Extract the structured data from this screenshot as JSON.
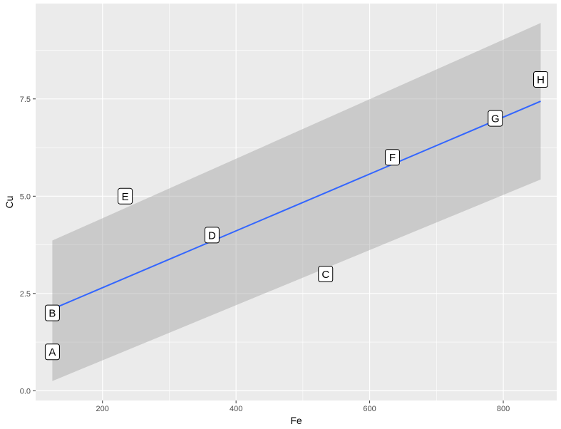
{
  "chart_data": {
    "type": "scatter",
    "title": "",
    "xlabel": "Fe",
    "ylabel": "Cu",
    "xlim": [
      100,
      880
    ],
    "ylim": [
      -0.25,
      9.95
    ],
    "x_ticks": [
      200,
      400,
      600,
      800
    ],
    "y_ticks": [
      0.0,
      2.5,
      5.0,
      7.5
    ],
    "x_tick_labels": [
      "200",
      "400",
      "600",
      "800"
    ],
    "y_tick_labels": [
      "0.0",
      "2.5",
      "5.0",
      "7.5"
    ],
    "grid": true,
    "points": [
      {
        "label": "A",
        "x": 125,
        "y": 1
      },
      {
        "label": "B",
        "x": 125,
        "y": 2
      },
      {
        "label": "C",
        "x": 534,
        "y": 3
      },
      {
        "label": "D",
        "x": 364,
        "y": 4
      },
      {
        "label": "E",
        "x": 234,
        "y": 5
      },
      {
        "label": "F",
        "x": 634,
        "y": 6
      },
      {
        "label": "G",
        "x": 788,
        "y": 7
      },
      {
        "label": "H",
        "x": 856,
        "y": 8
      }
    ],
    "smooth": {
      "method": "lm",
      "x_range": [
        125,
        856
      ],
      "fit_y": [
        2.1,
        7.44
      ],
      "band_lower": [
        0.25,
        5.43
      ],
      "band_upper": [
        3.86,
        9.45
      ],
      "line_color": "#3366ff",
      "band_color": "#cccccc"
    },
    "colors": {
      "panel_background": "#ebebeb",
      "grid_major": "#ffffff",
      "label_fill": "#ffffff",
      "label_border": "#000000"
    }
  }
}
